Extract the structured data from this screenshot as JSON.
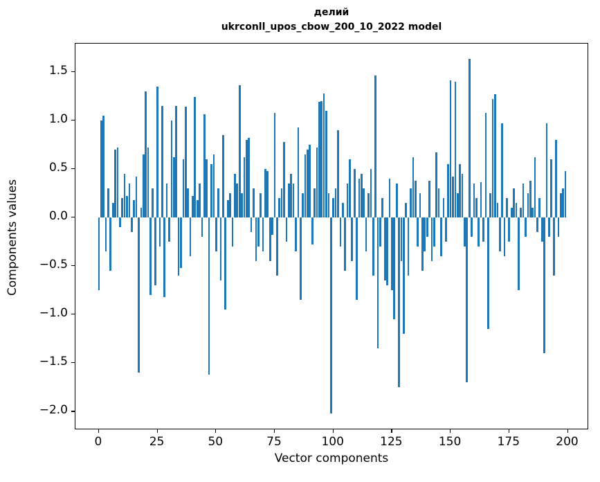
{
  "title_line1": "делий",
  "title_line2": "ukrconll_upos_cbow_200_10_2022 model",
  "chart_data": {
    "type": "bar",
    "title": "делий\nukrconll_upos_cbow_200_10_2022 model",
    "xlabel": "Vector components",
    "ylabel": "Components values",
    "xlim": [
      -10,
      209
    ],
    "ylim": [
      -2.19,
      1.79
    ],
    "x_ticks": [
      0,
      25,
      50,
      75,
      100,
      125,
      150,
      175,
      200
    ],
    "y_ticks": [
      -2.0,
      -1.5,
      -1.0,
      -0.5,
      0.0,
      0.5,
      1.0,
      1.5
    ],
    "bar_color": "#1f77b4",
    "grid": false,
    "legend": "none",
    "values": [
      -0.75,
      1.0,
      1.05,
      -0.35,
      0.3,
      -0.55,
      0.15,
      0.7,
      0.72,
      -0.1,
      0.2,
      0.45,
      0.22,
      0.35,
      -0.15,
      0.18,
      0.42,
      -1.6,
      0.1,
      0.65,
      1.3,
      0.72,
      -0.8,
      0.3,
      -0.7,
      1.35,
      -0.3,
      1.15,
      -0.82,
      0.35,
      -0.25,
      1.0,
      0.62,
      1.15,
      -0.6,
      -0.52,
      0.6,
      1.14,
      0.3,
      -0.4,
      0.22,
      1.24,
      0.18,
      0.35,
      -0.2,
      1.06,
      0.6,
      -1.62,
      0.55,
      0.65,
      -0.35,
      0.3,
      -0.65,
      0.85,
      -0.95,
      0.18,
      0.25,
      -0.3,
      0.45,
      0.35,
      1.36,
      0.25,
      0.62,
      0.8,
      0.82,
      -0.15,
      0.3,
      -0.45,
      -0.3,
      0.25,
      -0.35,
      0.5,
      0.48,
      -0.45,
      -0.18,
      1.08,
      -0.6,
      0.2,
      0.3,
      0.78,
      -0.25,
      0.35,
      0.45,
      0.35,
      -0.35,
      0.93,
      -0.85,
      0.25,
      0.65,
      0.7,
      0.75,
      -0.28,
      0.3,
      0.72,
      1.19,
      1.2,
      1.28,
      1.1,
      0.25,
      -2.02,
      0.2,
      0.3,
      0.9,
      -0.3,
      0.15,
      -0.55,
      0.35,
      0.6,
      -0.45,
      0.5,
      -0.85,
      0.4,
      0.45,
      0.3,
      -0.35,
      0.25,
      0.5,
      -0.6,
      1.46,
      -1.35,
      -0.3,
      0.2,
      -0.65,
      -0.7,
      0.4,
      -0.75,
      -1.05,
      0.35,
      -1.75,
      -0.45,
      -1.2,
      0.15,
      -0.6,
      0.3,
      0.62,
      0.38,
      -0.3,
      0.25,
      -0.55,
      -0.35,
      -0.2,
      0.38,
      -0.45,
      -0.3,
      0.67,
      0.3,
      -0.4,
      0.2,
      -0.25,
      0.55,
      1.41,
      0.42,
      1.4,
      0.25,
      0.55,
      0.45,
      -0.3,
      -1.7,
      1.63,
      -0.2,
      0.35,
      0.2,
      -0.3,
      0.36,
      -0.25,
      1.08,
      -1.15,
      0.25,
      1.22,
      1.27,
      0.15,
      -0.35,
      0.97,
      -0.4,
      0.2,
      -0.25,
      0.1,
      0.3,
      0.15,
      -0.75,
      0.1,
      0.35,
      -0.2,
      0.25,
      0.38,
      0.1,
      0.62,
      -0.15,
      0.2,
      -0.25,
      -1.4,
      0.97,
      -0.2,
      0.6,
      -0.6,
      0.8,
      -0.2,
      0.25,
      0.3,
      0.48
    ]
  }
}
